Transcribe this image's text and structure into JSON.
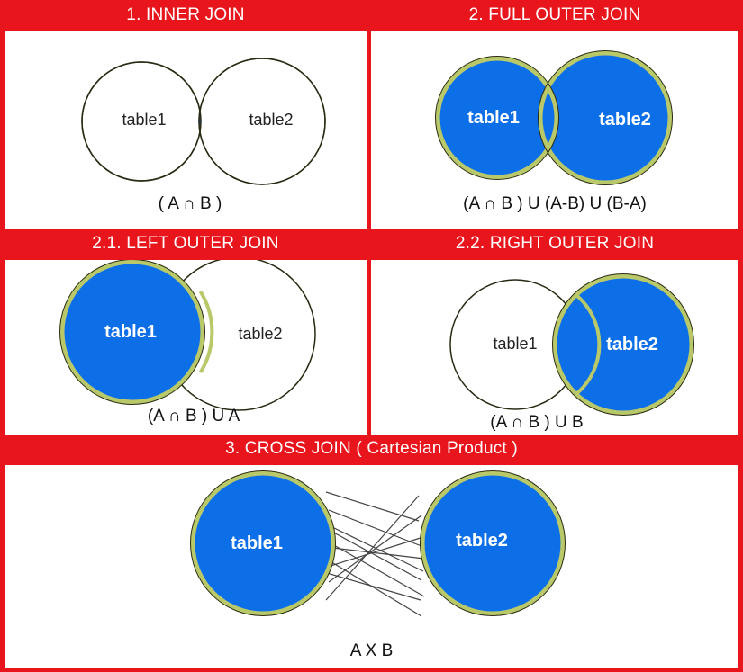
{
  "colors": {
    "frame": "#e8161c",
    "fill": "#0d6fe8",
    "outline": "#2a2a12",
    "rim": "#b9c96a",
    "white": "#ffffff"
  },
  "panels": {
    "inner": {
      "title": "1. INNER JOIN",
      "left": "table1",
      "right": "table2",
      "caption": "( A ∩ B )"
    },
    "full_outer": {
      "title": "2. FULL OUTER JOIN",
      "left": "table1",
      "right": "table2",
      "caption": "(A ∩ B ) U (A-B) U (B-A)"
    },
    "left_outer": {
      "title": "2.1. LEFT OUTER JOIN",
      "left": "table1",
      "right": "table2",
      "caption": "(A ∩ B ) U A"
    },
    "right_outer": {
      "title": "2.2. RIGHT OUTER JOIN",
      "left": "table1",
      "right": "table2",
      "caption": "(A ∩ B ) U B"
    },
    "cross": {
      "title": "3. CROSS JOIN ( Cartesian Product )",
      "left": "table1",
      "right": "table2",
      "caption": "A X B"
    }
  }
}
